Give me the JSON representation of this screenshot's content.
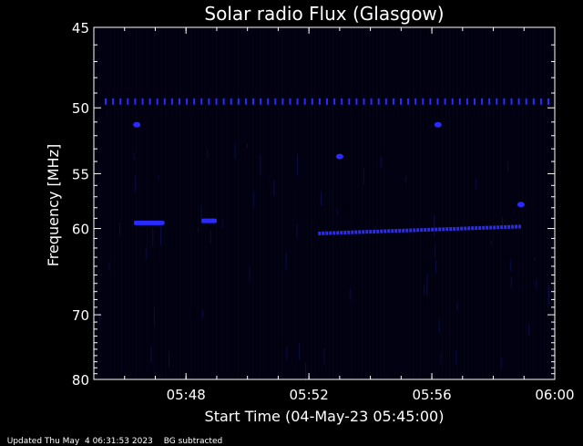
{
  "chart_data": {
    "type": "heatmap",
    "title": "Solar radio Flux (Glasgow)",
    "xlabel": "Start Time (04-May-23 05:45:00)",
    "ylabel": "Frequency [MHz]",
    "xlim": [
      "05:45",
      "06:00"
    ],
    "ylim": [
      80,
      45
    ],
    "xticks": [
      "05:48",
      "05:52",
      "05:56",
      "06:00"
    ],
    "yticks": [
      45,
      50,
      55,
      60,
      70,
      80
    ],
    "y_scale": "reciprocal",
    "background_color": "#000010",
    "emission_color": "#2a2aff",
    "features": [
      {
        "kind": "periodic-band",
        "frequency": 49.6,
        "from": "05:45",
        "to": "06:00"
      },
      {
        "kind": "blob",
        "frequency": 51.2,
        "at": "05:46.4"
      },
      {
        "kind": "blob",
        "frequency": 51.2,
        "at": "05:56.2"
      },
      {
        "kind": "blob",
        "frequency": 53.6,
        "at": "05:53.0"
      },
      {
        "kind": "streak",
        "frequency": 59.4,
        "from": "05:46.3",
        "to": "05:47.3"
      },
      {
        "kind": "streak",
        "frequency": 59.2,
        "from": "05:48.5",
        "to": "05:49.0"
      },
      {
        "kind": "drift",
        "frequency_start": 60.5,
        "frequency_end": 59.8,
        "from": "05:52.3",
        "to": "05:58.9"
      },
      {
        "kind": "blob",
        "frequency": 57.7,
        "at": "05:58.9"
      }
    ]
  },
  "footer": {
    "updated": "Updated Thu May  4 06:31:53 2023",
    "note": "BG subtracted"
  }
}
